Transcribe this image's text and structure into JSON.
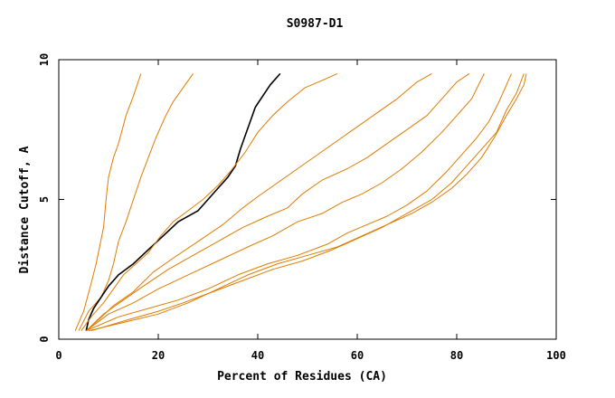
{
  "chart_data": {
    "type": "line",
    "title": "S0987-D1",
    "xlabel": "Percent of Residues (CA)",
    "ylabel": "Distance Cutoff, A",
    "xlim": [
      0,
      100
    ],
    "ylim": [
      0,
      10
    ],
    "x_ticks": [
      0,
      20,
      40,
      60,
      80,
      100
    ],
    "y_ticks": [
      0,
      5,
      10
    ],
    "grid": false,
    "legend": "none",
    "colors": {
      "highlight": "#000000",
      "other": "#e07b00"
    },
    "series": [
      {
        "highlight": false,
        "points": [
          [
            3.3,
            0.3
          ],
          [
            5.0,
            1.0
          ],
          [
            6.5,
            2.0
          ],
          [
            7.5,
            2.7
          ],
          [
            8.2,
            3.3
          ],
          [
            9.0,
            4.0
          ],
          [
            9.5,
            5.0
          ],
          [
            10.0,
            5.8
          ],
          [
            11.0,
            6.5
          ],
          [
            12.0,
            7.0
          ],
          [
            13.5,
            8.0
          ],
          [
            15.0,
            8.7
          ],
          [
            16.5,
            9.5
          ]
        ]
      },
      {
        "highlight": false,
        "points": [
          [
            4.0,
            0.3
          ],
          [
            6.0,
            1.0
          ],
          [
            8.5,
            1.5
          ],
          [
            10.0,
            2.1
          ],
          [
            11.0,
            2.7
          ],
          [
            12.0,
            3.5
          ],
          [
            13.5,
            4.2
          ],
          [
            15.0,
            5.0
          ],
          [
            16.5,
            5.8
          ],
          [
            18.0,
            6.5
          ],
          [
            19.5,
            7.2
          ],
          [
            21.5,
            8.0
          ],
          [
            23.0,
            8.5
          ],
          [
            25.0,
            9.0
          ],
          [
            27.0,
            9.5
          ]
        ]
      },
      {
        "highlight": true,
        "points": [
          [
            5.5,
            0.3
          ],
          [
            6.0,
            0.7
          ],
          [
            7.0,
            1.1
          ],
          [
            8.5,
            1.5
          ],
          [
            10.0,
            1.9
          ],
          [
            12.0,
            2.3
          ],
          [
            15.0,
            2.7
          ],
          [
            18.0,
            3.2
          ],
          [
            21.0,
            3.7
          ],
          [
            24.0,
            4.2
          ],
          [
            28.0,
            4.6
          ],
          [
            30.0,
            5.0
          ],
          [
            32.0,
            5.4
          ],
          [
            34.0,
            5.8
          ],
          [
            35.5,
            6.2
          ],
          [
            36.5,
            6.8
          ],
          [
            37.5,
            7.3
          ],
          [
            38.5,
            7.8
          ],
          [
            39.5,
            8.3
          ],
          [
            41.0,
            8.7
          ],
          [
            42.5,
            9.1
          ],
          [
            44.5,
            9.5
          ]
        ]
      },
      {
        "highlight": false,
        "points": [
          [
            4.5,
            0.3
          ],
          [
            6.5,
            0.8
          ],
          [
            9.0,
            1.3
          ],
          [
            11.0,
            1.8
          ],
          [
            13.0,
            2.3
          ],
          [
            15.5,
            2.7
          ],
          [
            18.0,
            3.1
          ],
          [
            20.5,
            3.7
          ],
          [
            23.0,
            4.2
          ],
          [
            26.0,
            4.6
          ],
          [
            29.0,
            5.0
          ],
          [
            32.0,
            5.5
          ],
          [
            34.5,
            6.0
          ],
          [
            37.5,
            6.7
          ],
          [
            40.0,
            7.4
          ],
          [
            43.0,
            8.0
          ],
          [
            46.0,
            8.5
          ],
          [
            49.5,
            9.0
          ],
          [
            53.5,
            9.3
          ],
          [
            56.0,
            9.5
          ]
        ]
      },
      {
        "highlight": false,
        "points": [
          [
            5.5,
            0.3
          ],
          [
            8.0,
            0.7
          ],
          [
            11.0,
            1.2
          ],
          [
            15.0,
            1.7
          ],
          [
            19.0,
            2.4
          ],
          [
            23.0,
            2.9
          ],
          [
            28.0,
            3.5
          ],
          [
            33.0,
            4.1
          ],
          [
            37.0,
            4.7
          ],
          [
            40.0,
            5.1
          ],
          [
            44.0,
            5.6
          ],
          [
            48.0,
            6.1
          ],
          [
            52.0,
            6.6
          ],
          [
            56.0,
            7.1
          ],
          [
            60.0,
            7.6
          ],
          [
            64.0,
            8.1
          ],
          [
            68.0,
            8.6
          ],
          [
            72.0,
            9.2
          ],
          [
            75.0,
            9.5
          ]
        ]
      },
      {
        "highlight": false,
        "points": [
          [
            5.5,
            0.3
          ],
          [
            9.0,
            0.9
          ],
          [
            13.0,
            1.4
          ],
          [
            17.0,
            1.9
          ],
          [
            22.0,
            2.5
          ],
          [
            27.0,
            3.0
          ],
          [
            32.0,
            3.5
          ],
          [
            37.0,
            4.0
          ],
          [
            42.0,
            4.4
          ],
          [
            46.0,
            4.7
          ],
          [
            49.0,
            5.2
          ],
          [
            53.0,
            5.7
          ],
          [
            58.0,
            6.1
          ],
          [
            62.0,
            6.5
          ],
          [
            66.0,
            7.0
          ],
          [
            70.0,
            7.5
          ],
          [
            74.0,
            8.0
          ],
          [
            77.0,
            8.6
          ],
          [
            80.0,
            9.2
          ],
          [
            82.5,
            9.5
          ]
        ]
      },
      {
        "highlight": false,
        "points": [
          [
            5.5,
            0.3
          ],
          [
            10.0,
            0.9
          ],
          [
            15.0,
            1.3
          ],
          [
            20.0,
            1.8
          ],
          [
            26.0,
            2.3
          ],
          [
            32.0,
            2.8
          ],
          [
            38.0,
            3.3
          ],
          [
            43.0,
            3.7
          ],
          [
            48.0,
            4.2
          ],
          [
            53.0,
            4.5
          ],
          [
            57.0,
            4.9
          ],
          [
            61.0,
            5.2
          ],
          [
            65.0,
            5.6
          ],
          [
            69.0,
            6.1
          ],
          [
            73.0,
            6.7
          ],
          [
            77.0,
            7.4
          ],
          [
            80.0,
            8.0
          ],
          [
            83.0,
            8.6
          ],
          [
            85.5,
            9.5
          ]
        ]
      },
      {
        "highlight": false,
        "points": [
          [
            5.5,
            0.3
          ],
          [
            12.0,
            0.8
          ],
          [
            18.0,
            1.1
          ],
          [
            24.0,
            1.4
          ],
          [
            30.0,
            1.8
          ],
          [
            36.0,
            2.3
          ],
          [
            42.0,
            2.7
          ],
          [
            48.0,
            3.0
          ],
          [
            54.0,
            3.4
          ],
          [
            58.0,
            3.8
          ],
          [
            62.0,
            4.1
          ],
          [
            66.0,
            4.4
          ],
          [
            70.0,
            4.8
          ],
          [
            74.0,
            5.3
          ],
          [
            78.0,
            6.0
          ],
          [
            81.0,
            6.6
          ],
          [
            84.0,
            7.2
          ],
          [
            86.5,
            7.8
          ],
          [
            88.5,
            8.5
          ],
          [
            90.0,
            9.1
          ],
          [
            91.0,
            9.5
          ]
        ]
      },
      {
        "highlight": false,
        "points": [
          [
            6.5,
            0.3
          ],
          [
            14.0,
            0.7
          ],
          [
            20.0,
            1.0
          ],
          [
            25.0,
            1.3
          ],
          [
            31.0,
            1.7
          ],
          [
            37.0,
            2.1
          ],
          [
            43.0,
            2.5
          ],
          [
            49.0,
            2.8
          ],
          [
            55.0,
            3.2
          ],
          [
            60.0,
            3.6
          ],
          [
            65.0,
            4.0
          ],
          [
            70.0,
            4.5
          ],
          [
            75.0,
            5.0
          ],
          [
            79.0,
            5.6
          ],
          [
            82.0,
            6.2
          ],
          [
            85.0,
            6.8
          ],
          [
            88.0,
            7.4
          ],
          [
            90.0,
            8.2
          ],
          [
            92.0,
            8.8
          ],
          [
            93.5,
            9.5
          ]
        ]
      },
      {
        "highlight": false,
        "points": [
          [
            6.0,
            0.3
          ],
          [
            13.0,
            0.6
          ],
          [
            20.0,
            0.9
          ],
          [
            26.0,
            1.3
          ],
          [
            32.0,
            1.8
          ],
          [
            38.0,
            2.3
          ],
          [
            44.0,
            2.7
          ],
          [
            50.0,
            3.0
          ],
          [
            56.0,
            3.3
          ],
          [
            61.0,
            3.7
          ],
          [
            66.0,
            4.1
          ],
          [
            71.0,
            4.5
          ],
          [
            75.0,
            4.9
          ],
          [
            79.0,
            5.4
          ],
          [
            82.0,
            5.9
          ],
          [
            85.0,
            6.5
          ],
          [
            87.5,
            7.2
          ],
          [
            90.0,
            8.0
          ],
          [
            92.0,
            8.6
          ],
          [
            93.5,
            9.1
          ],
          [
            94.0,
            9.5
          ]
        ]
      }
    ]
  }
}
